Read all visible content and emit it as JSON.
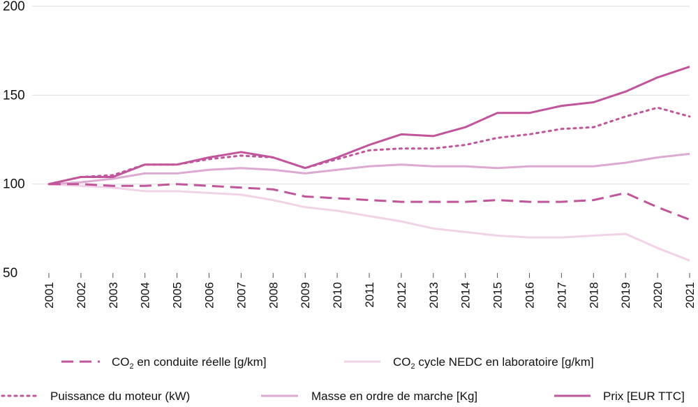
{
  "chart_data": {
    "type": "line",
    "title": "",
    "xlabel": "",
    "ylabel": "",
    "x": [
      "2001",
      "2002",
      "2003",
      "2004",
      "2005",
      "2006",
      "2007",
      "2008",
      "2009",
      "2010",
      "2011",
      "2012",
      "2013",
      "2014",
      "2015",
      "2016",
      "2017",
      "2018",
      "2019",
      "2020",
      "2021"
    ],
    "y_ticks": [
      "50",
      "100",
      "150",
      "200"
    ],
    "ylim": [
      50,
      200
    ],
    "grid": true,
    "legend_position": "bottom",
    "series": [
      {
        "key": "co2_reel",
        "legend_main": "CO",
        "legend_sub": "2",
        "legend_rest": " en conduite réelle [g/km]",
        "color": "#c1549a",
        "style": "dashed",
        "values": [
          100,
          100,
          99,
          99,
          100,
          99,
          98,
          97,
          93,
          92,
          91,
          90,
          90,
          90,
          91,
          90,
          90,
          91,
          95,
          87,
          80
        ]
      },
      {
        "key": "co2_nedc",
        "legend_main": "CO",
        "legend_sub": "2",
        "legend_rest": " cycle NEDC en laboratoire [g/km]",
        "color": "#f1d2e7",
        "style": "solid",
        "values": [
          100,
          99,
          98,
          96,
          96,
          95,
          94,
          91,
          87,
          85,
          82,
          79,
          75,
          73,
          71,
          70,
          70,
          71,
          72,
          64,
          57
        ]
      },
      {
        "key": "puissance",
        "legend_main": "Puissance du moteur (kW)",
        "legend_sub": "",
        "legend_rest": "",
        "color": "#c1549a",
        "style": "dotted",
        "values": [
          100,
          104,
          105,
          111,
          111,
          114,
          116,
          115,
          109,
          114,
          119,
          120,
          120,
          122,
          126,
          128,
          131,
          132,
          138,
          143,
          138
        ]
      },
      {
        "key": "masse",
        "legend_main": "Masse en ordre de marche [Kg]",
        "legend_sub": "",
        "legend_rest": "",
        "color": "#dba9d2",
        "style": "solid",
        "values": [
          100,
          101,
          103,
          106,
          106,
          108,
          109,
          108,
          106,
          108,
          110,
          111,
          110,
          110,
          109,
          110,
          110,
          110,
          112,
          115,
          117
        ]
      },
      {
        "key": "prix",
        "legend_main": "Prix [EUR TTC]",
        "legend_sub": "",
        "legend_rest": "",
        "color": "#c1549a",
        "style": "solid",
        "values": [
          100,
          104,
          104,
          111,
          111,
          115,
          118,
          115,
          109,
          115,
          122,
          128,
          127,
          132,
          140,
          140,
          144,
          146,
          152,
          160,
          166
        ]
      }
    ]
  }
}
